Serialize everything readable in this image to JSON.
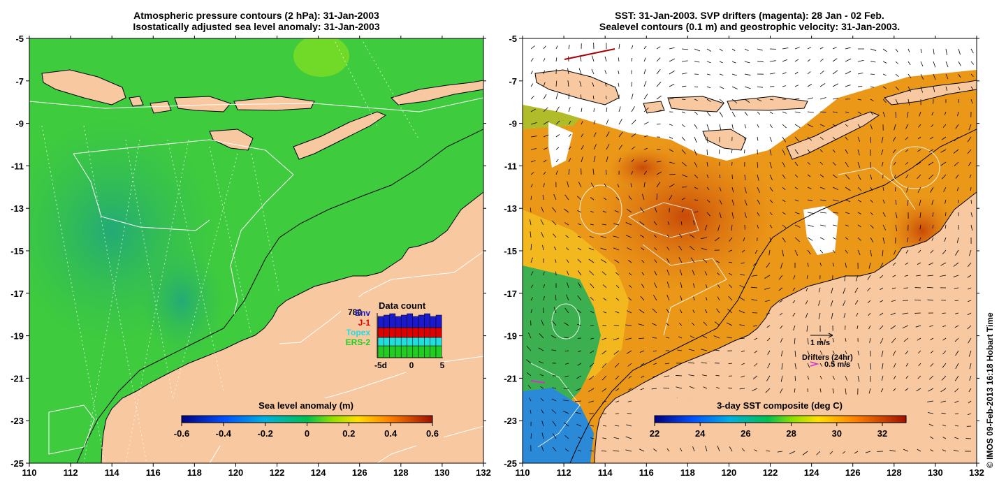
{
  "left_panel": {
    "title_line1": "Atmospheric pressure contours (2 hPa): 31-Jan-2003",
    "title_line2": "Isostatically adjusted sea level anomaly: 31-Jan-2003",
    "colorbar": {
      "label": "Sea level anomaly (m)",
      "ticks": [
        "-0.6",
        "-0.4",
        "-0.2",
        "0",
        "0.2",
        "0.4",
        "0.6"
      ]
    },
    "data_count": {
      "title": "Data count",
      "top_number": "780",
      "legend": [
        {
          "label": "Env",
          "color": "#1a1acc"
        },
        {
          "label": "J-1",
          "color": "#dd0000"
        },
        {
          "label": "Topex",
          "color": "#22dddd"
        },
        {
          "label": "ERS-2",
          "color": "#22cc22"
        }
      ],
      "x_ticks": [
        "-5d",
        "0",
        "5"
      ]
    }
  },
  "right_panel": {
    "title_line1": "SST: 31-Jan-2003. SVP drifters (magenta): 28 Jan - 02 Feb.",
    "title_line2": "Sealevel contours (0.1 m) and geostrophic velocity: 31-Jan-2003.",
    "colorbar": {
      "label": "3-day SST composite (deg C)",
      "ticks": [
        "22",
        "24",
        "26",
        "28",
        "30",
        "32"
      ]
    },
    "velocity_key": "1 m/s",
    "drifters_key": "Drifters (24hr)",
    "drifters_speed": "0.5 m/s"
  },
  "axes": {
    "x_ticks": [
      "110",
      "112",
      "114",
      "116",
      "118",
      "120",
      "122",
      "124",
      "126",
      "128",
      "130",
      "132"
    ],
    "y_ticks": [
      "-5",
      "-7",
      "-9",
      "-11",
      "-13",
      "-15",
      "-17",
      "-19",
      "-21",
      "-23",
      "-25"
    ]
  },
  "credit": "© IMOS 09-Feb-2013 16:18 Hobart Time",
  "colors": {
    "land": "#f8c8a0",
    "ocean_sla": "#33cc33",
    "sst_warm": "#e07010",
    "sst_cool": "#33aa55"
  }
}
